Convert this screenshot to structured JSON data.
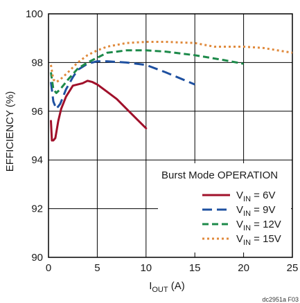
{
  "chart_data": {
    "type": "line",
    "title": "",
    "xlabel": {
      "main": "I",
      "sub": "OUT",
      "rest": " (A)"
    },
    "ylabel": "EFFICIENCY (%)",
    "xlim": [
      0,
      25
    ],
    "ylim": [
      90,
      100
    ],
    "xticks": [
      0,
      5,
      10,
      15,
      20,
      25
    ],
    "yticks": [
      90,
      92,
      94,
      96,
      98,
      100
    ],
    "grid": true,
    "legend_title": "Burst Mode OPERATION",
    "legend_placement": "bottom-right",
    "series": [
      {
        "name": {
          "main": "V",
          "sub": "IN",
          "rest": " = 6V"
        },
        "color": "#a0102a",
        "dash": "solid",
        "x": [
          0.25,
          0.35,
          0.5,
          0.7,
          1.0,
          1.3,
          1.8,
          2.5,
          3.0,
          3.5,
          4.0,
          4.5,
          5.0,
          6.0,
          7.0,
          8.0,
          9.0,
          10.0
        ],
        "y": [
          95.6,
          94.8,
          94.8,
          94.9,
          95.6,
          96.1,
          96.6,
          97.05,
          97.1,
          97.15,
          97.25,
          97.2,
          97.1,
          96.8,
          96.5,
          96.1,
          95.7,
          95.3
        ]
      },
      {
        "name": {
          "main": "V",
          "sub": "IN",
          "rest": " = 9V"
        },
        "color": "#1e50a0",
        "dash": "long-dash",
        "x": [
          0.25,
          0.5,
          0.8,
          1.2,
          1.8,
          2.5,
          3.0,
          4.0,
          5.0,
          6.0,
          8.0,
          10.0,
          12.0,
          15.0
        ],
        "y": [
          97.2,
          96.4,
          96.1,
          96.3,
          96.9,
          97.4,
          97.7,
          97.95,
          98.05,
          98.05,
          98.0,
          97.9,
          97.6,
          97.1
        ]
      },
      {
        "name": {
          "main": "V",
          "sub": "IN",
          "rest": " = 12V"
        },
        "color": "#1d8a4a",
        "dash": "medium-dash",
        "x": [
          0.25,
          0.5,
          0.8,
          1.2,
          2.0,
          3.0,
          4.0,
          5.0,
          6.0,
          7.0,
          8.0,
          10.0,
          12.0,
          15.0,
          18.0,
          20.0
        ],
        "y": [
          97.6,
          96.9,
          96.75,
          96.9,
          97.3,
          97.75,
          98.0,
          98.2,
          98.4,
          98.45,
          98.5,
          98.5,
          98.45,
          98.3,
          98.1,
          97.95
        ]
      },
      {
        "name": {
          "main": "V",
          "sub": "IN",
          "rest": " = 15V"
        },
        "color": "#e08a3c",
        "dash": "dotted",
        "x": [
          0.25,
          0.5,
          0.8,
          1.2,
          2.0,
          3.0,
          4.0,
          5.0,
          6.0,
          8.0,
          10.0,
          12.0,
          15.0,
          17.0,
          20.0,
          22.0,
          25.0
        ],
        "y": [
          97.9,
          97.3,
          97.2,
          97.3,
          97.6,
          98.0,
          98.3,
          98.5,
          98.65,
          98.8,
          98.85,
          98.85,
          98.8,
          98.65,
          98.65,
          98.6,
          98.4
        ]
      }
    ]
  },
  "figure_code": "dc2951a F03"
}
